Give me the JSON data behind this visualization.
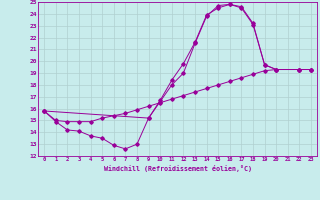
{
  "xlabel": "Windchill (Refroidissement éolien,°C)",
  "bg_color": "#c8ecec",
  "line_color": "#990099",
  "grid_color": "#b0d0d0",
  "xlim": [
    -0.5,
    23.5
  ],
  "ylim": [
    12,
    25
  ],
  "xticks": [
    0,
    1,
    2,
    3,
    4,
    5,
    6,
    7,
    8,
    9,
    10,
    11,
    12,
    13,
    14,
    15,
    16,
    17,
    18,
    19,
    20,
    21,
    22,
    23
  ],
  "yticks": [
    12,
    13,
    14,
    15,
    16,
    17,
    18,
    19,
    20,
    21,
    22,
    23,
    24,
    25
  ],
  "line1_x": [
    0,
    1,
    2,
    3,
    4,
    5,
    6,
    7,
    8,
    9,
    10,
    11,
    12,
    13,
    14,
    15,
    16,
    17,
    18,
    19,
    20,
    22,
    23
  ],
  "line1_y": [
    15.8,
    14.9,
    14.2,
    14.1,
    13.7,
    13.5,
    12.9,
    12.6,
    13.0,
    15.2,
    16.6,
    18.0,
    19.0,
    21.5,
    23.8,
    24.7,
    24.8,
    24.6,
    23.2,
    19.7,
    19.3,
    19.3,
    19.3
  ],
  "line2_x": [
    0,
    1,
    2,
    3,
    4,
    5,
    6,
    7,
    8,
    9,
    10,
    11,
    12,
    13,
    14,
    15,
    16,
    17,
    18,
    19,
    20,
    22,
    23
  ],
  "line2_y": [
    15.8,
    15.0,
    14.9,
    14.9,
    14.9,
    15.2,
    15.4,
    15.6,
    15.9,
    16.2,
    16.5,
    16.8,
    17.1,
    17.4,
    17.7,
    18.0,
    18.3,
    18.6,
    18.9,
    19.2,
    19.3,
    19.3,
    19.3
  ],
  "line3_x": [
    0,
    9,
    10,
    11,
    12,
    13,
    14,
    15,
    16,
    17,
    18,
    19,
    20,
    22,
    23
  ],
  "line3_y": [
    15.8,
    15.2,
    16.7,
    18.4,
    19.8,
    21.6,
    23.9,
    24.5,
    24.8,
    24.5,
    23.1,
    19.7,
    19.3,
    19.3,
    19.3
  ]
}
